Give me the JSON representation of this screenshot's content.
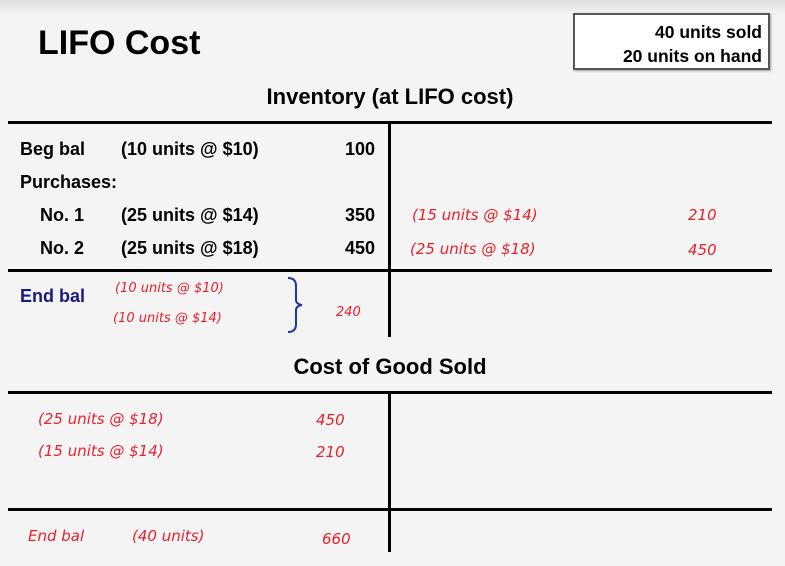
{
  "title": "LIFO Cost",
  "summary": {
    "line1": "40 units sold",
    "line2": "20 units on hand"
  },
  "inventory": {
    "heading": "Inventory (at LIFO cost)",
    "debit_rows": [
      {
        "label": "Beg bal",
        "detail": "(10 units @ $10)",
        "amount": "100"
      },
      {
        "label": "Purchases:"
      },
      {
        "label": "No. 1",
        "detail": "(25 units @ $14)",
        "amount": "350"
      },
      {
        "label": "No. 2",
        "detail": "(25 units @ $18)",
        "amount": "450"
      }
    ],
    "credit_rows": [
      {
        "detail": "(15 units @ $14)",
        "amount": "210"
      },
      {
        "detail": "(25 units @ $18)",
        "amount": "450"
      }
    ],
    "end_bal": {
      "label": "End bal",
      "lines": [
        "(10 units @ $10)",
        "(10 units @ $14)"
      ],
      "amount": "240"
    }
  },
  "cogs": {
    "heading": "Cost of Good Sold",
    "debit_rows": [
      {
        "detail": "(25 units @ $18)",
        "amount": "450"
      },
      {
        "detail": "(15 units @ $14)",
        "amount": "210"
      }
    ],
    "end_bal": {
      "label": "End bal",
      "detail": "(40 units)",
      "amount": "660"
    }
  },
  "colors": {
    "handwriting": "#e8212b",
    "end_bal_label": "#1a1a7a",
    "bracket": "#1a3a9a"
  }
}
